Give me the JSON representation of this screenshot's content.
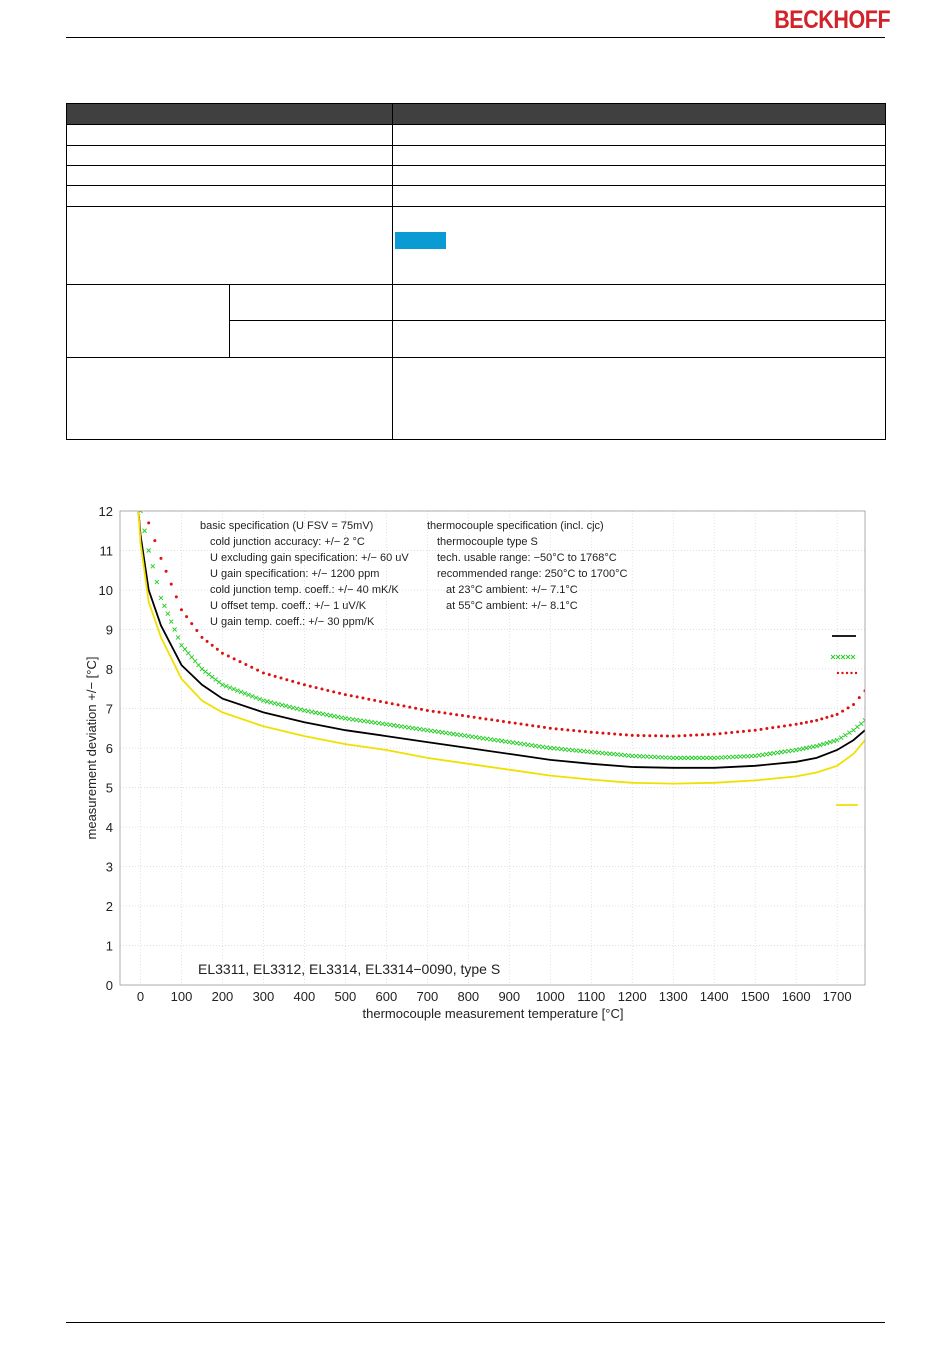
{
  "header": {
    "brand": "BECKHOFF"
  },
  "colors": {
    "brand": "#d2232a",
    "table_header": "#404040",
    "marker": "#0a9bd4",
    "series_black": "#000000",
    "series_green": "#22cc22",
    "series_red": "#dd1111",
    "series_yellow": "#f0e000"
  },
  "chart_data": {
    "type": "line",
    "title": "",
    "xlabel": "thermocouple measurement temperature [°C]",
    "ylabel": "measurement deviation +/− [°C]",
    "xlim": [
      -50,
      1768
    ],
    "ylim": [
      0,
      12
    ],
    "xticks": [
      "0",
      "100",
      "200",
      "300",
      "400",
      "500",
      "600",
      "700",
      "800",
      "900",
      "1000",
      "1100",
      "1200",
      "1300",
      "1400",
      "1500",
      "1600",
      "1700"
    ],
    "yticks": [
      "0",
      "1",
      "2",
      "3",
      "4",
      "5",
      "6",
      "7",
      "8",
      "9",
      "10",
      "11",
      "12"
    ],
    "grid": true,
    "legend_position": "right",
    "annotation": "EL3311, EL3312, EL3314, EL3314−0090, type S",
    "spec_left": [
      "basic specification (U FSV = 75mV)",
      "cold junction accuracy: +/− 2 °C",
      "U excluding gain specification: +/− 60 uV",
      "U gain specification: +/− 1200 ppm",
      "cold junction temp. coeff.: +/− 40 mK/K",
      "U offset temp. coeff.: +/− 1 uV/K",
      "U gain temp. coeff.: +/− 30 ppm/K"
    ],
    "spec_right": [
      "thermocouple specification (incl. cjc)",
      "thermocouple type S",
      "tech. usable range: −50°C to 1768°C",
      "recommended range: 250°C to 1700°C",
      "at 23°C ambient: +/− 7.1°C",
      "at 55°C ambient: +/− 8.1°C"
    ],
    "x": [
      -5,
      0,
      20,
      50,
      100,
      150,
      200,
      300,
      400,
      500,
      600,
      700,
      800,
      900,
      1000,
      1100,
      1200,
      1300,
      1400,
      1500,
      1600,
      1650,
      1700,
      1740,
      1768
    ],
    "series": [
      {
        "style": "solid",
        "values": [
          12.0,
          11.4,
          10.0,
          9.1,
          8.1,
          7.6,
          7.25,
          6.9,
          6.65,
          6.45,
          6.3,
          6.15,
          6.0,
          5.85,
          5.7,
          5.6,
          5.52,
          5.5,
          5.5,
          5.55,
          5.65,
          5.75,
          5.95,
          6.2,
          6.45
        ]
      },
      {
        "style": "crosses",
        "values": [
          null,
          12.0,
          11.0,
          9.8,
          8.6,
          8.0,
          7.6,
          7.2,
          6.95,
          6.75,
          6.6,
          6.45,
          6.3,
          6.15,
          6.0,
          5.9,
          5.8,
          5.75,
          5.75,
          5.8,
          5.95,
          6.05,
          6.2,
          6.45,
          6.7
        ]
      },
      {
        "style": "dotted",
        "values": [
          null,
          null,
          11.7,
          10.8,
          9.5,
          8.8,
          8.4,
          7.9,
          7.6,
          7.35,
          7.15,
          6.95,
          6.8,
          6.65,
          6.5,
          6.4,
          6.32,
          6.3,
          6.35,
          6.45,
          6.6,
          6.7,
          6.85,
          7.1,
          7.45
        ]
      },
      {
        "style": "solid",
        "values": [
          12.0,
          11.2,
          9.7,
          8.8,
          7.75,
          7.2,
          6.9,
          6.55,
          6.3,
          6.1,
          5.95,
          5.75,
          5.6,
          5.45,
          5.3,
          5.2,
          5.12,
          5.1,
          5.12,
          5.18,
          5.28,
          5.38,
          5.55,
          5.85,
          6.2
        ]
      }
    ]
  }
}
